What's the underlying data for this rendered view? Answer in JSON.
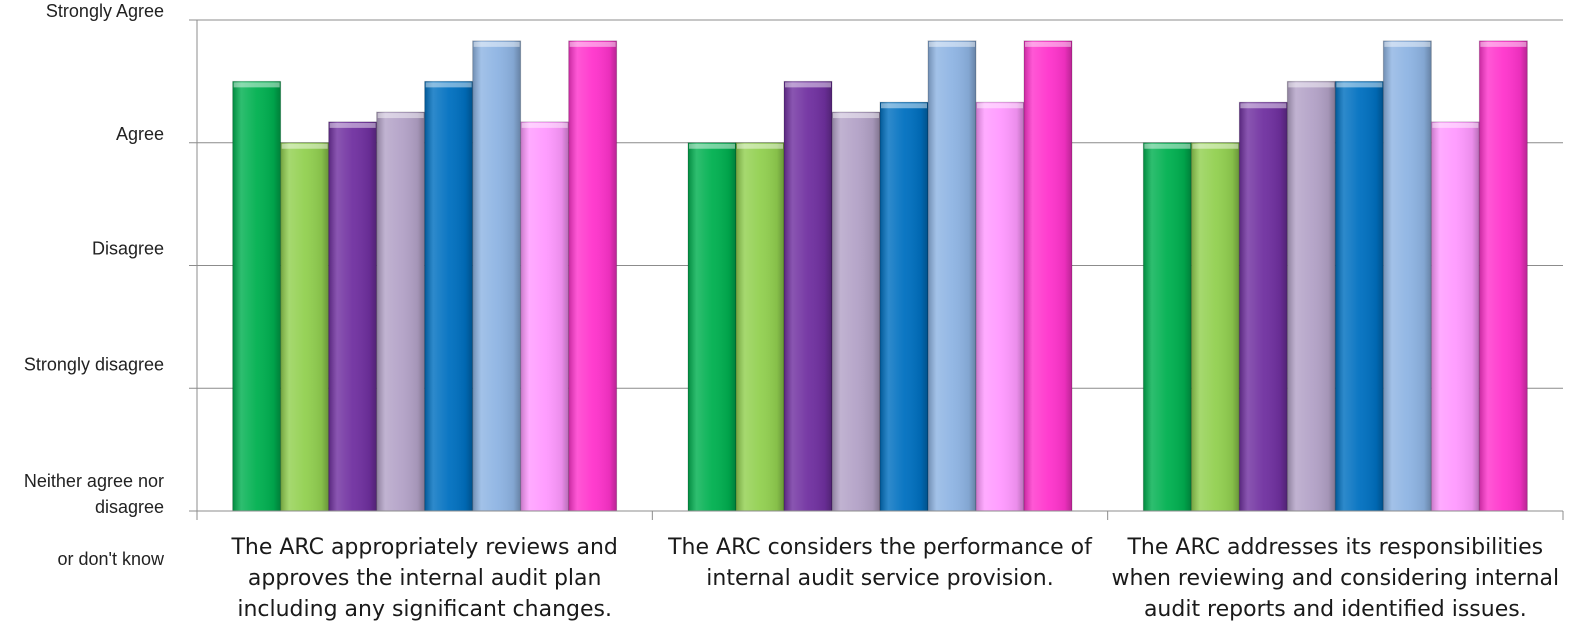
{
  "chart_data": {
    "type": "bar",
    "title": "",
    "xlabel": "",
    "ylabel": "",
    "y_scale": "ordinal rating, 0 = Neither agree nor disagree or don't know, 4 = Strongly Agree",
    "ylim": [
      0,
      4
    ],
    "grid": true,
    "legend": "none",
    "yticks": [
      {
        "value": 4,
        "label": "Strongly Agree"
      },
      {
        "value": 3,
        "label": "Agree"
      },
      {
        "value": 2,
        "label": "Disagree"
      },
      {
        "value": 1,
        "label": "Strongly disagree"
      },
      {
        "value": 0,
        "label": "Neither agree nor disagree or don't know"
      }
    ],
    "categories": [
      "The ARC appropriately reviews and approves the internal audit plan including any significant changes.",
      "The ARC considers the performance of internal audit service provision.",
      "The ARC addresses its responsibilities when reviewing and considering internal audit reports and identified issues."
    ],
    "series": [
      {
        "color": "#00B050",
        "values": [
          3.5,
          3.0,
          3.0
        ]
      },
      {
        "color": "#92D050",
        "values": [
          3.0,
          3.0,
          3.0
        ]
      },
      {
        "color": "#7030A0",
        "values": [
          3.17,
          3.5,
          3.33
        ]
      },
      {
        "color": "#B3A2C7",
        "values": [
          3.25,
          3.25,
          3.5
        ]
      },
      {
        "color": "#0070C0",
        "values": [
          3.5,
          3.33,
          3.5
        ]
      },
      {
        "color": "#8EB4E3",
        "values": [
          3.83,
          3.83,
          3.83
        ]
      },
      {
        "color": "#FF99FF",
        "values": [
          3.17,
          3.33,
          3.17
        ]
      },
      {
        "color": "#FF33CC",
        "values": [
          3.83,
          3.83,
          3.83
        ]
      }
    ]
  }
}
